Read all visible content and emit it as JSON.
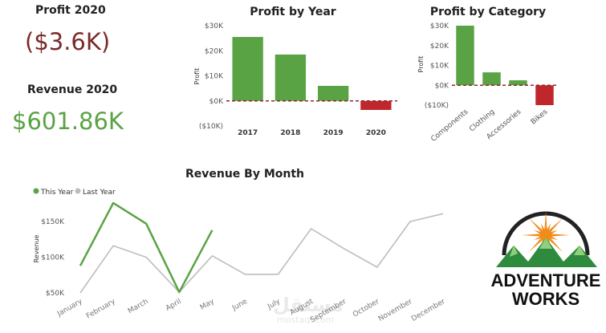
{
  "kpis": {
    "profit_title": "Profit 2020",
    "profit_value": "($3.6K)",
    "revenue_title": "Revenue 2020",
    "revenue_value": "$601.86K"
  },
  "colors": {
    "positive": "#5aa345",
    "negative": "#c0272d",
    "this_year": "#5aa345",
    "last_year": "#bdbdbd",
    "zero_line": "#8b2a2a"
  },
  "logo": {
    "line1": "ADVENTURE",
    "line2": "WORKS"
  },
  "watermark": {
    "arabic": "مستقل",
    "latin": "mostaql.com"
  },
  "chart_data": [
    {
      "id": "profit-by-year",
      "type": "bar",
      "title": "Profit by Year",
      "ylabel": "Profit",
      "xlabel": "",
      "categories": [
        "2017",
        "2018",
        "2019",
        "2020"
      ],
      "values": [
        25500,
        18500,
        6000,
        -3600
      ],
      "ylim": [
        -10000,
        30000
      ],
      "yticks": [
        -10000,
        0,
        10000,
        20000,
        30000
      ],
      "ytick_labels": [
        "($10K)",
        "$0K",
        "$10K",
        "$20K",
        "$30K"
      ]
    },
    {
      "id": "profit-by-category",
      "type": "bar",
      "title": "Profit by Category",
      "ylabel": "Profit",
      "xlabel": "",
      "categories": [
        "Components",
        "Clothing",
        "Accessories",
        "Bikes"
      ],
      "values": [
        30000,
        6500,
        2500,
        -10000
      ],
      "ylim": [
        -10000,
        30000
      ],
      "yticks": [
        -10000,
        0,
        10000,
        20000,
        30000
      ],
      "ytick_labels": [
        "($10K)",
        "$0K",
        "$10K",
        "$20K",
        "$30K"
      ]
    },
    {
      "id": "revenue-by-month",
      "type": "line",
      "title": "Revenue By Month",
      "ylabel": "Revenue",
      "xlabel": "",
      "categories": [
        "January",
        "February",
        "March",
        "April",
        "May",
        "June",
        "July",
        "August",
        "September",
        "October",
        "November",
        "December"
      ],
      "series": [
        {
          "name": "This Year",
          "values": [
            88000,
            176000,
            147000,
            51000,
            138000,
            null,
            null,
            null,
            null,
            null,
            null,
            null
          ]
        },
        {
          "name": "Last Year",
          "values": [
            50000,
            116000,
            100000,
            51000,
            102000,
            76000,
            76000,
            140000,
            112000,
            86000,
            150000,
            161000
          ]
        }
      ],
      "ylim": [
        50000,
        185000
      ],
      "yticks": [
        50000,
        100000,
        150000
      ],
      "ytick_labels": [
        "$50K",
        "$100K",
        "$150K"
      ],
      "legend": "top-left"
    }
  ]
}
